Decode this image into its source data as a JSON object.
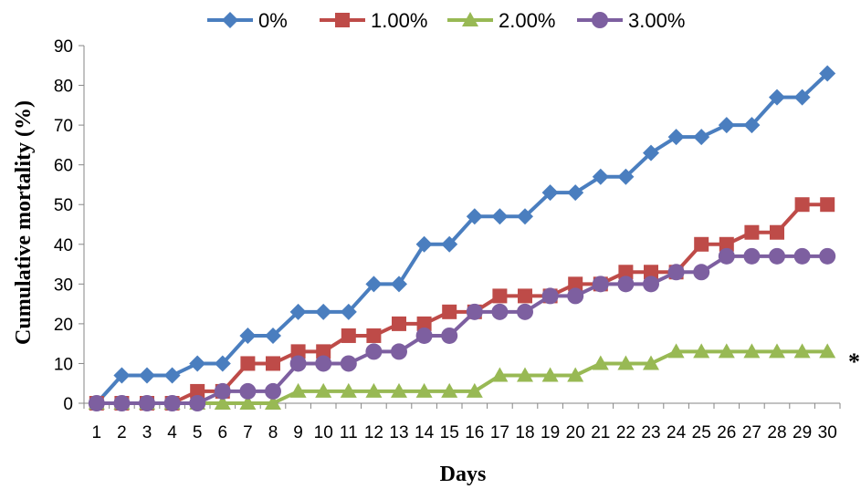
{
  "chart_data": {
    "type": "line",
    "title": "",
    "xlabel": "Days",
    "ylabel": "Cumulative mortality (%)",
    "x": [
      1,
      2,
      3,
      4,
      5,
      6,
      7,
      8,
      9,
      10,
      11,
      12,
      13,
      14,
      15,
      16,
      17,
      18,
      19,
      20,
      21,
      22,
      23,
      24,
      25,
      26,
      27,
      28,
      29,
      30
    ],
    "ylim": [
      0,
      90
    ],
    "yticks": [
      0,
      10,
      20,
      30,
      40,
      50,
      60,
      70,
      80,
      90
    ],
    "grid": false,
    "legend_position": "top",
    "annotation": "*",
    "series": [
      {
        "name": "0%",
        "color": "#4a7ebf",
        "marker": "diamond",
        "values": [
          0,
          7,
          7,
          7,
          10,
          10,
          17,
          17,
          23,
          23,
          23,
          30,
          30,
          40,
          40,
          47,
          47,
          47,
          53,
          53,
          57,
          57,
          63,
          67,
          67,
          70,
          70,
          77,
          77,
          83
        ]
      },
      {
        "name": "1.00%",
        "color": "#be4b48",
        "marker": "square",
        "values": [
          0,
          0,
          0,
          0,
          3,
          3,
          10,
          10,
          13,
          13,
          17,
          17,
          20,
          20,
          23,
          23,
          27,
          27,
          27,
          30,
          30,
          33,
          33,
          33,
          40,
          40,
          43,
          43,
          50,
          50
        ]
      },
      {
        "name": "2.00%",
        "color": "#98b954",
        "marker": "triangle",
        "values": [
          0,
          0,
          0,
          0,
          0,
          0,
          0,
          0,
          3,
          3,
          3,
          3,
          3,
          3,
          3,
          3,
          7,
          7,
          7,
          7,
          10,
          10,
          10,
          13,
          13,
          13,
          13,
          13,
          13,
          13
        ]
      },
      {
        "name": "3.00%",
        "color": "#7d5fa0",
        "marker": "circle",
        "values": [
          0,
          0,
          0,
          0,
          0,
          3,
          3,
          3,
          10,
          10,
          10,
          13,
          13,
          17,
          17,
          23,
          23,
          23,
          27,
          27,
          30,
          30,
          30,
          33,
          33,
          37,
          37,
          37,
          37,
          37
        ]
      }
    ]
  }
}
